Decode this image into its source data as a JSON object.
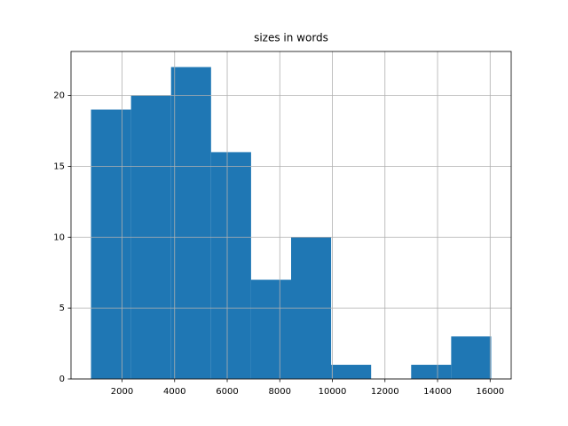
{
  "chart_data": {
    "type": "histogram",
    "title": "sizes in words",
    "bins": [
      820,
      2342,
      3864,
      5386,
      6908,
      8430,
      9952,
      11474,
      12996,
      14518,
      16040
    ],
    "counts": [
      19,
      20,
      22,
      16,
      7,
      10,
      1,
      0,
      1,
      3
    ],
    "color": "#1f77b4",
    "xlim": [
      59,
      16801
    ],
    "ylim": [
      0,
      23.1
    ],
    "xticks": [
      2000,
      4000,
      6000,
      8000,
      10000,
      12000,
      14000,
      16000
    ],
    "yticks": [
      0,
      5,
      10,
      15,
      20
    ],
    "grid": true
  }
}
